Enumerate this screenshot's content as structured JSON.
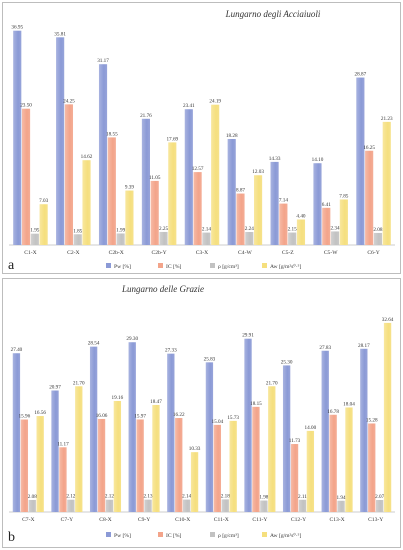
{
  "colors": {
    "Pw": "#8b9ad6",
    "IC": "#f3a48a",
    "rho": "#c2c2c2",
    "Aw": "#f5df7e"
  },
  "legend": [
    "Pw [%]",
    "IC [%]",
    "ρ [g/cm³]",
    "Aw [g/m²s⁰·⁵]"
  ],
  "chart_data": [
    {
      "type": "bar",
      "panel_label": "a",
      "title": "Lungarno degli Acciaiuoli",
      "ylim": [
        0,
        40
      ],
      "categories": [
        "C1-X",
        "C2-X",
        "C2b-X",
        "C2b-Y",
        "C3-X",
        "C4-W",
        "C5-Z",
        "C5-W",
        "C6-Y"
      ],
      "series": [
        {
          "name": "Pw [%]",
          "values": [
            36.95,
            35.81,
            31.17,
            21.76,
            23.41,
            18.28,
            14.33,
            14.1,
            28.87
          ]
        },
        {
          "name": "IC [%]",
          "values": [
            23.5,
            24.25,
            18.55,
            11.05,
            12.57,
            8.87,
            7.14,
            6.41,
            16.25
          ]
        },
        {
          "name": "ρ [g/cm³]",
          "values": [
            1.95,
            1.85,
            1.99,
            2.25,
            2.14,
            2.24,
            2.15,
            2.34,
            2.08
          ]
        },
        {
          "name": "Aw [g/m²s⁰·⁵]",
          "values": [
            7.03,
            14.62,
            9.39,
            17.69,
            24.19,
            12.03,
            4.4,
            7.85,
            21.23
          ]
        }
      ],
      "value_labels": [
        [
          "36.95",
          "35.81",
          "31.17",
          "21.76",
          "23.41",
          "18.28",
          "14.33",
          "14.10",
          "28.87"
        ],
        [
          "23.50",
          "24.25",
          "18.55",
          "11.05",
          "12.57",
          "8.87",
          "7.14",
          "6.41",
          "16.25"
        ],
        [
          "1.95",
          "1.85",
          "1.99",
          "2.25",
          "2.14",
          "2.24",
          "2.15",
          "2.34",
          "2.08"
        ],
        [
          "7.03",
          "14.62",
          "9.39",
          "17.69",
          "24.19",
          "12.03",
          "4.40",
          "7.85",
          "21.23"
        ]
      ],
      "legend_position": "bottom"
    },
    {
      "type": "bar",
      "panel_label": "b",
      "title": "Lungarno delle Grazie",
      "ylim": [
        0,
        34
      ],
      "categories": [
        "C7-X",
        "C7-Y",
        "C8-X",
        "C9-Y",
        "C10-X",
        "C11-X",
        "C11-Y",
        "C12-Y",
        "C13-X",
        "C13-Y"
      ],
      "series": [
        {
          "name": "Pw [%]",
          "values": [
            27.4,
            20.97,
            28.54,
            29.3,
            27.33,
            25.83,
            29.91,
            25.3,
            27.83,
            28.17
          ]
        },
        {
          "name": "IC [%]",
          "values": [
            15.96,
            11.17,
            16.06,
            15.97,
            16.22,
            15.04,
            18.15,
            11.73,
            16.78,
            15.28
          ]
        },
        {
          "name": "ρ [g/cm³]",
          "values": [
            2.08,
            2.12,
            2.12,
            2.13,
            2.14,
            2.18,
            1.98,
            2.11,
            1.94,
            2.07
          ]
        },
        {
          "name": "Aw [g/m²s⁰·⁵]",
          "values": [
            16.56,
            21.7,
            19.16,
            18.47,
            10.33,
            15.73,
            21.7,
            14.0,
            18.04,
            32.64
          ]
        }
      ],
      "value_labels": [
        [
          "27.40",
          "20.97",
          "28.54",
          "29.30",
          "27.33",
          "25.83",
          "29.91",
          "25.30",
          "27.83",
          "28.17"
        ],
        [
          "15.96",
          "11.17",
          "16.06",
          "15.97",
          "16.22",
          "15.04",
          "18.15",
          "11.73",
          "16.78",
          "15.28"
        ],
        [
          "2.08",
          "2.12",
          "2.12",
          "2.13",
          "2.14",
          "2.18",
          "1.98",
          "2.11",
          "1.94",
          "2.07"
        ],
        [
          "16.56",
          "21.70",
          "19.16",
          "18.47",
          "10.33",
          "15.73",
          "21.70",
          "14.00",
          "18.04",
          "32.64"
        ]
      ],
      "legend_position": "bottom"
    }
  ]
}
